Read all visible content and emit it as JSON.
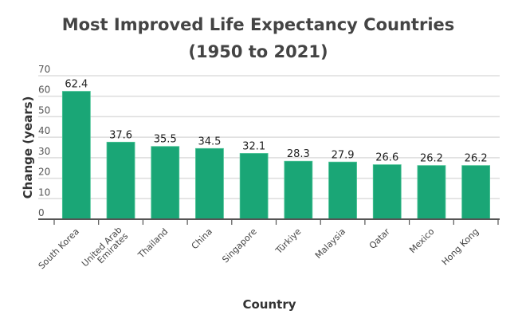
{
  "chart_data": {
    "type": "bar",
    "title": "Most Improved Life Expectancy Countries",
    "subtitle": "(1950 to 2021)",
    "xlabel": "Country",
    "ylabel": "Change (years)",
    "ylim": [
      0,
      70
    ],
    "yticks": [
      0,
      10,
      20,
      30,
      40,
      50,
      60,
      70
    ],
    "grid": true,
    "categories": [
      "South Korea",
      "United Arab Emirates",
      "Thailand",
      "China",
      "Singapore",
      "Türkiye",
      "Malaysia",
      "Qatar",
      "Mexico",
      "Hong Kong"
    ],
    "values": [
      62.4,
      37.6,
      35.5,
      34.5,
      32.1,
      28.3,
      27.9,
      26.6,
      26.2,
      26.2
    ],
    "data_labels": [
      "62.4",
      "37.6",
      "35.5",
      "34.5",
      "32.1",
      "28.3",
      "27.9",
      "26.6",
      "26.2",
      "26.2"
    ],
    "colors": {
      "bar": "#1aa676",
      "grid": "#dddddd",
      "axis": "#555555"
    }
  }
}
